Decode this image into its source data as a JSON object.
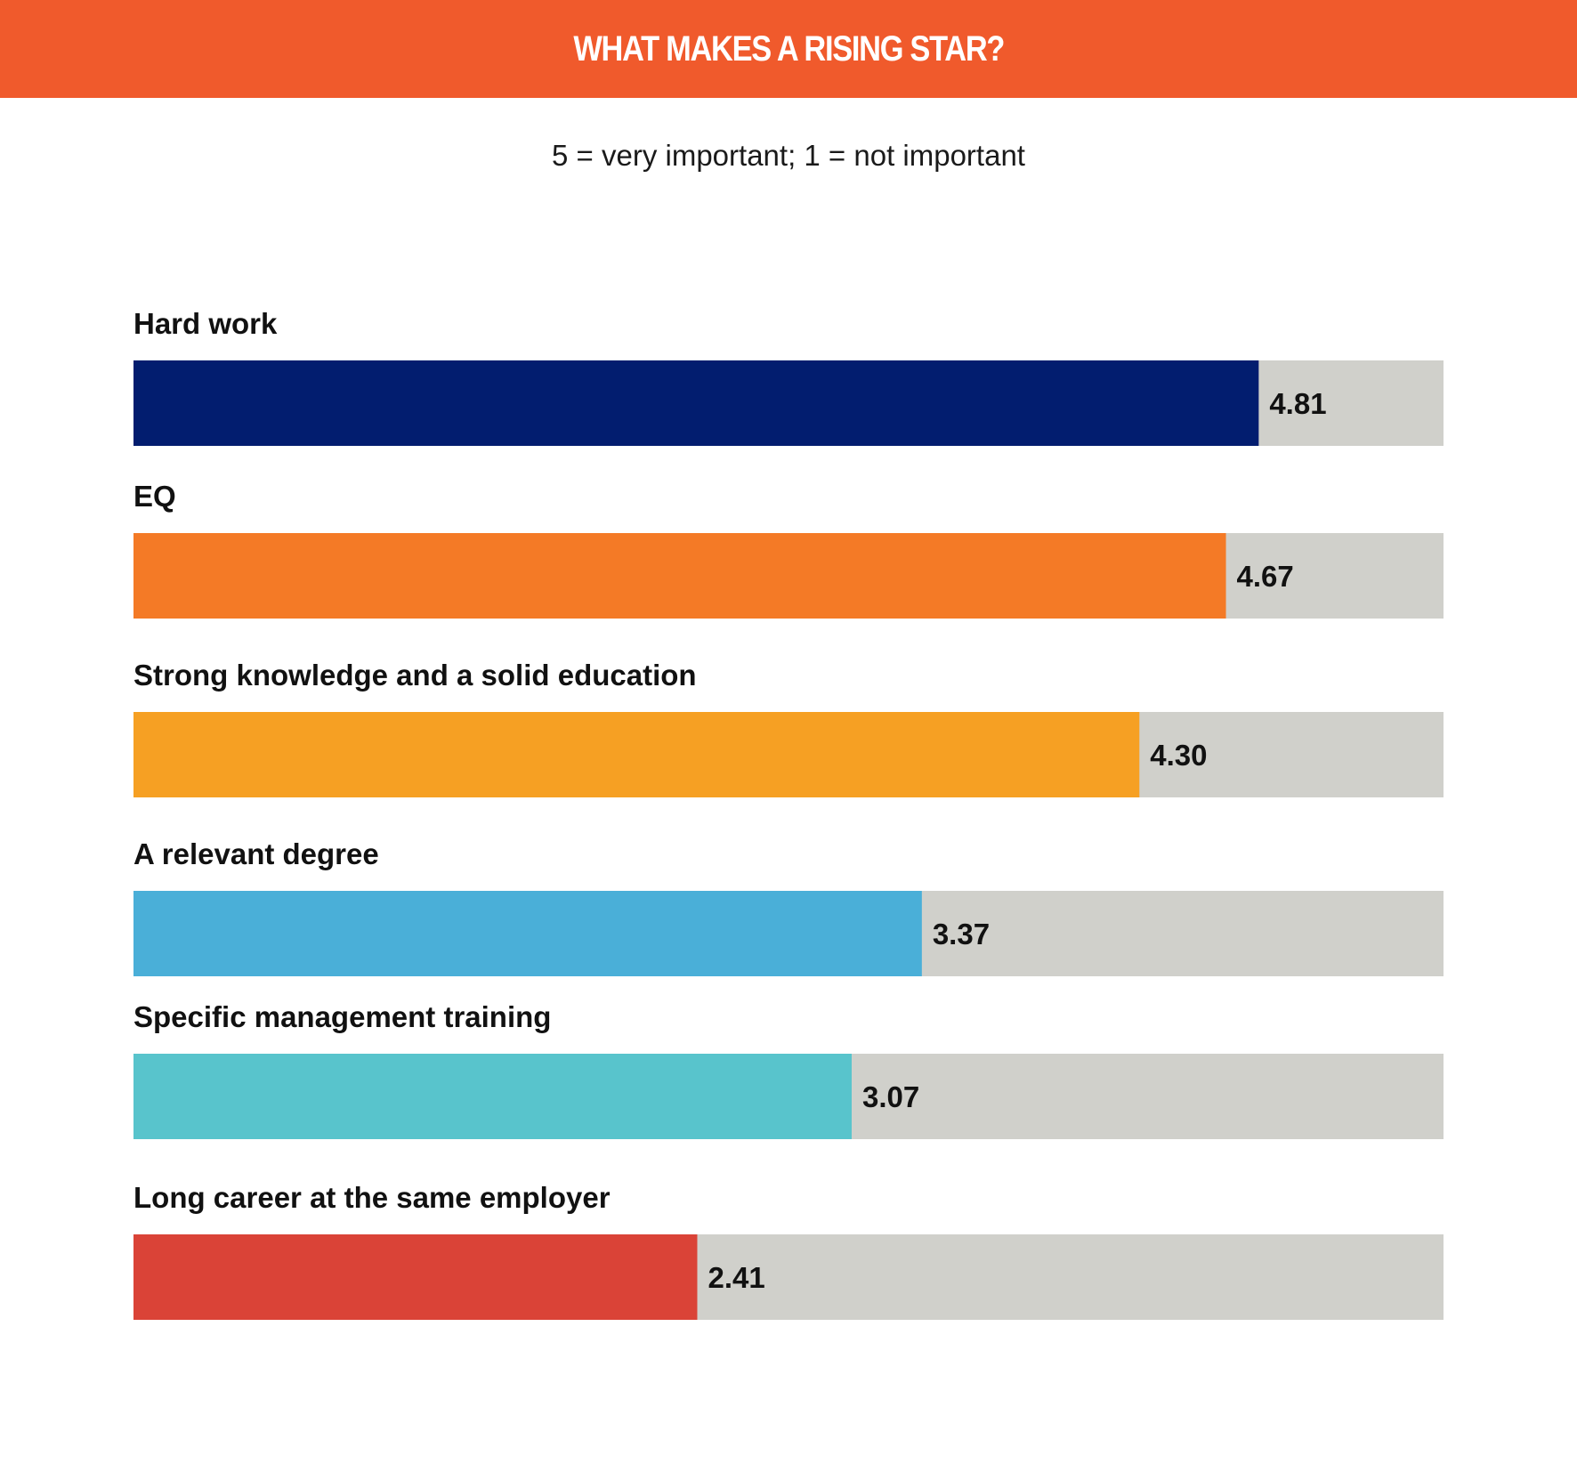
{
  "chart_data": {
    "type": "bar",
    "orientation": "horizontal",
    "title": "WHAT MAKES A RISING STAR?",
    "subtitle": "5 = very important; 1 = not important",
    "categories": [
      "Hard work",
      "EQ",
      "Strong knowledge and a solid education",
      "A relevant degree",
      "Specific management training",
      "Long career at the same employer"
    ],
    "values": [
      4.81,
      4.67,
      4.3,
      3.37,
      3.07,
      2.41
    ],
    "value_labels": [
      "4.81",
      "4.67",
      "4.30",
      "3.37",
      "3.07",
      "2.41"
    ],
    "xlim": [
      0,
      5.6
    ],
    "grid": false,
    "legend": "none",
    "colors": {
      "banner": "#f05a2c",
      "track": "#d0d0cb",
      "bars": [
        "#021d6f",
        "#f47a26",
        "#f6a023",
        "#4aafd8",
        "#58c4cc",
        "#da4337"
      ]
    }
  }
}
